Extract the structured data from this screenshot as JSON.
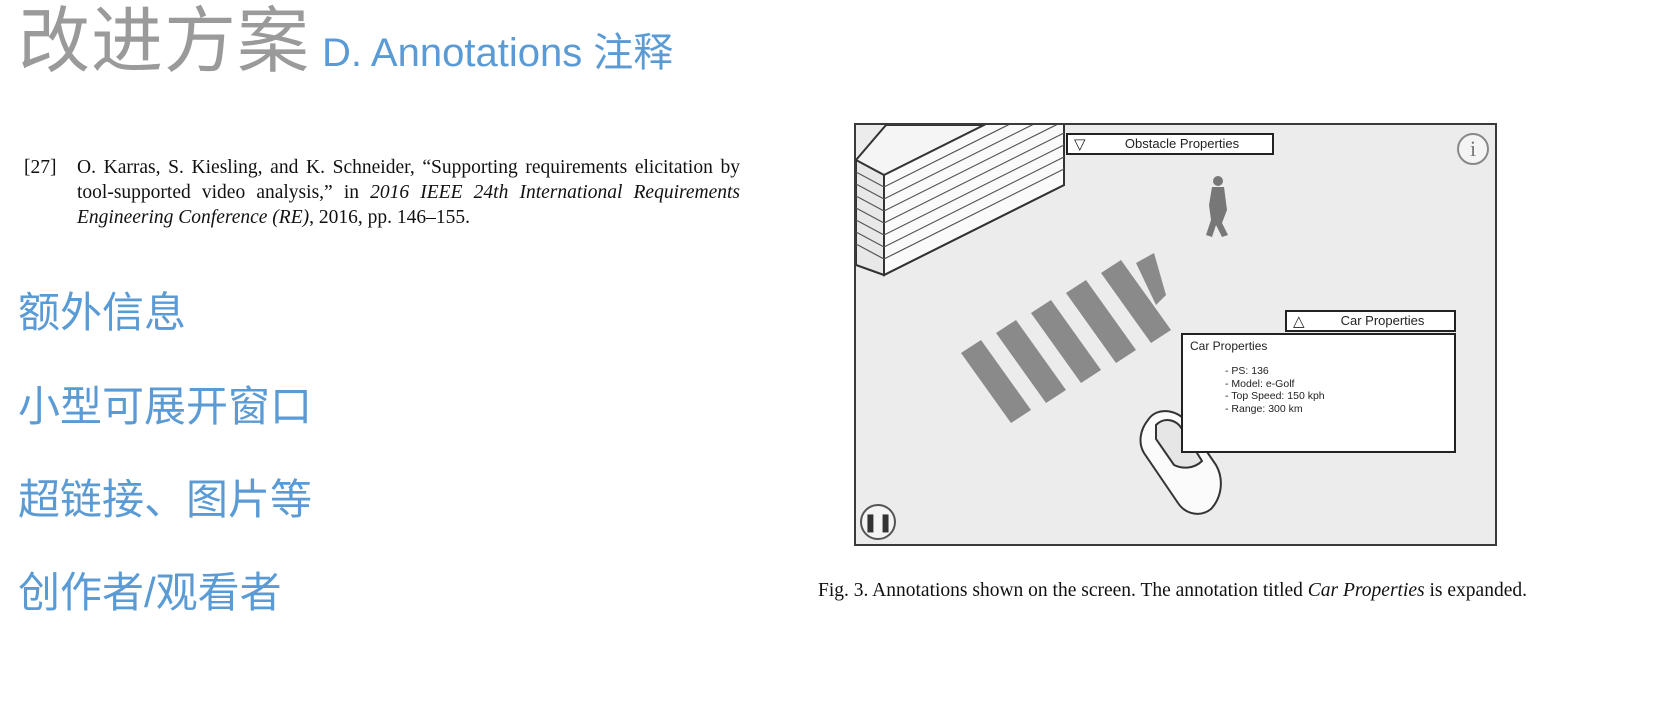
{
  "slide": {
    "title_main": "改进方案",
    "title_sub": "D. Annotations 注释"
  },
  "reference": {
    "number": "[27]",
    "text_before": "O. Karras, S. Kiesling, and K. Schneider, “Supporting requirements elicitation by tool-supported video analysis,” in ",
    "venue": "2016 IEEE 24th International Requirements Engineering Conference (RE)",
    "text_after": ", 2016, pp. 146–155."
  },
  "bullets": [
    {
      "text": "额外信息"
    },
    {
      "text": "小型可展开窗口"
    },
    {
      "text": "超链接、图片等"
    },
    {
      "text": "创作者/观看者"
    }
  ],
  "figure": {
    "obstacle_header": {
      "icon": "triangle-down-icon",
      "label": "Obstacle Properties"
    },
    "car_header": {
      "icon": "triangle-up-icon",
      "label": "Car Properties"
    },
    "car_expanded": {
      "title": "Car Properties",
      "items": [
        "- PS: 136",
        "- Model: e-Golf",
        "- Top Speed: 150 kph",
        "- Range: 300 km"
      ]
    },
    "info_icon": "i",
    "pause_icon": "pause-icon"
  },
  "caption": {
    "text_before": "Fig. 3.  Annotations shown on the screen. The annotation titled ",
    "emphasis": "Car Properties",
    "text_after": " is expanded."
  },
  "colors": {
    "title_gray": "#9a9a9a",
    "accent_blue": "#5b9bd5"
  }
}
